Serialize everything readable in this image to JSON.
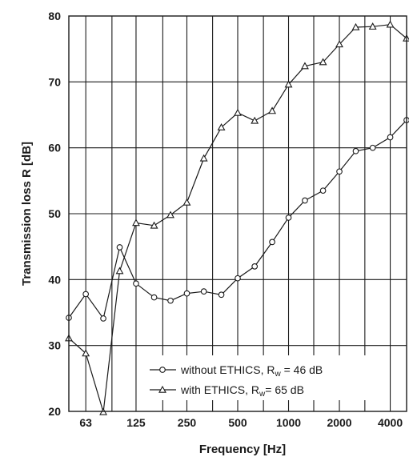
{
  "chart_data": {
    "type": "line",
    "xlabel": "Frequency [Hz]",
    "ylabel": "Transmission loss R [dB]",
    "x_scale": "log",
    "x_tick_labels": [
      "63",
      "125",
      "250",
      "500",
      "1000",
      "2000",
      "4000"
    ],
    "x_tick_values": [
      63,
      125,
      250,
      500,
      1000,
      2000,
      4000
    ],
    "x": [
      50,
      63,
      80,
      100,
      125,
      160,
      200,
      250,
      315,
      400,
      500,
      630,
      800,
      1000,
      1250,
      1600,
      2000,
      2500,
      3150,
      4000,
      5000
    ],
    "xlim": [
      50,
      5000
    ],
    "ylim": [
      20,
      80
    ],
    "y_ticks": [
      20,
      30,
      40,
      50,
      60,
      70,
      80
    ],
    "grid": true,
    "legend_position": "bottom-right",
    "series": [
      {
        "name": "without ETHICS",
        "legend_prefix": "without ETHICS, R",
        "legend_sub": "w",
        "legend_suffix": " = 46 dB",
        "marker": "circle",
        "values": [
          34.2,
          37.8,
          34.1,
          44.9,
          39.4,
          37.3,
          36.8,
          37.9,
          38.2,
          37.7,
          40.2,
          42.0,
          45.7,
          49.4,
          52.0,
          53.5,
          56.4,
          59.5,
          60.0,
          61.6,
          64.2
        ]
      },
      {
        "name": "with ETHICS",
        "legend_prefix": "with ETHICS, R",
        "legend_sub": "w",
        "legend_suffix": "= 65 dB",
        "marker": "triangle",
        "values": [
          31.1,
          28.8,
          19.9,
          41.3,
          48.6,
          48.2,
          49.8,
          51.7,
          58.4,
          63.1,
          65.3,
          64.1,
          65.6,
          69.6,
          72.4,
          73.0,
          75.7,
          78.3,
          78.4,
          78.7,
          76.6
        ]
      }
    ],
    "colors": {
      "line": "#1a1a1a",
      "marker_fill": "#ffffff",
      "grid": "#1a1a1a"
    }
  }
}
